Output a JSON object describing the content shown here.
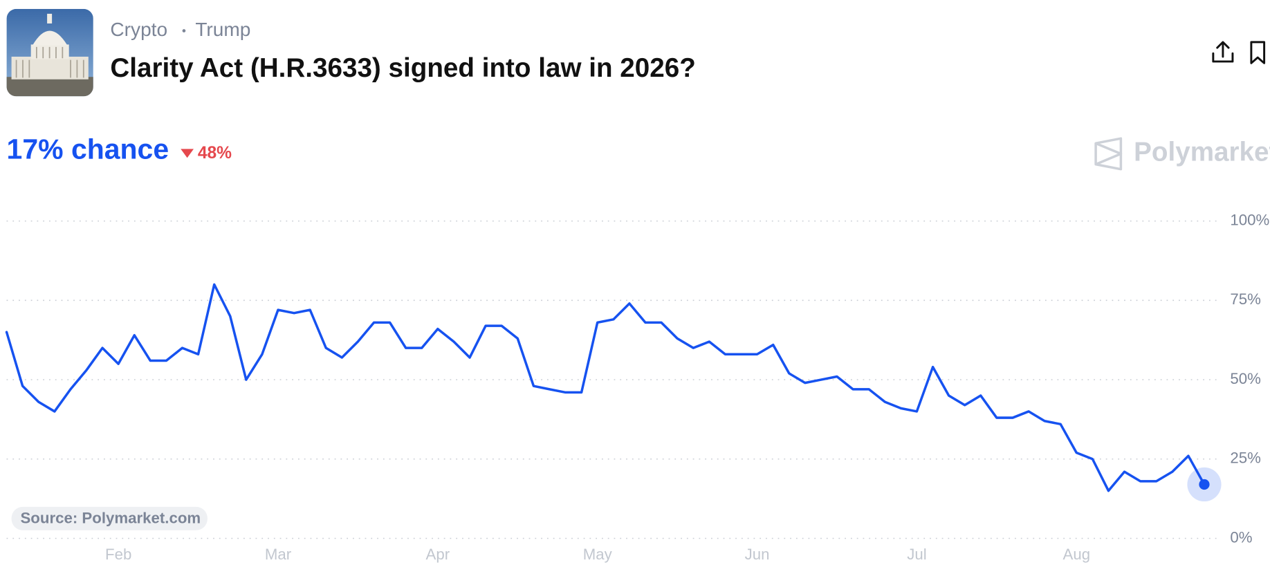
{
  "header": {
    "tags": [
      "Crypto",
      "Trump"
    ],
    "title": "Clarity Act (H.R.3633) signed into law in 2026?"
  },
  "chance": "17% chance",
  "change": "48%",
  "brand": "Polymarket",
  "source": "Source: Polymarket.com",
  "chart_data": {
    "type": "line",
    "categories": [
      null,
      null,
      null,
      null,
      null,
      null,
      null,
      "Feb",
      null,
      null,
      null,
      null,
      null,
      null,
      null,
      null,
      null,
      "Mar",
      null,
      null,
      null,
      null,
      null,
      null,
      null,
      null,
      null,
      "Apr",
      null,
      null,
      null,
      null,
      null,
      null,
      null,
      null,
      null,
      "May",
      null,
      null,
      null,
      null,
      null,
      null,
      null,
      null,
      null,
      "Jun",
      null,
      null,
      null,
      null,
      null,
      null,
      null,
      null,
      null,
      "Jul",
      null,
      null,
      null,
      null,
      null,
      null,
      null,
      null,
      null,
      "Aug",
      null,
      null,
      null,
      null,
      null,
      null,
      null,
      null
    ],
    "values": [
      65,
      48,
      43,
      40,
      47,
      53,
      60,
      55,
      64,
      56,
      56,
      60,
      58,
      80,
      70,
      50,
      58,
      72,
      71,
      72,
      60,
      57,
      62,
      68,
      68,
      60,
      60,
      66,
      62,
      57,
      67,
      67,
      63,
      48,
      47,
      46,
      46,
      68,
      69,
      74,
      68,
      68,
      63,
      60,
      62,
      58,
      58,
      58,
      61,
      52,
      49,
      50,
      51,
      47,
      47,
      43,
      41,
      40,
      54,
      45,
      42,
      45,
      38,
      38,
      40,
      37,
      36,
      27,
      25,
      15,
      21,
      18,
      18,
      21,
      26,
      17
    ],
    "color": "#1652f0",
    "ylim": [
      0,
      100
    ],
    "yticks": [
      {
        "value": 0,
        "label": "0%"
      },
      {
        "value": 25,
        "label": "25%"
      },
      {
        "value": 50,
        "label": "50%"
      },
      {
        "value": 75,
        "label": "75%"
      },
      {
        "value": 100,
        "label": "100%"
      }
    ],
    "grid": true
  }
}
